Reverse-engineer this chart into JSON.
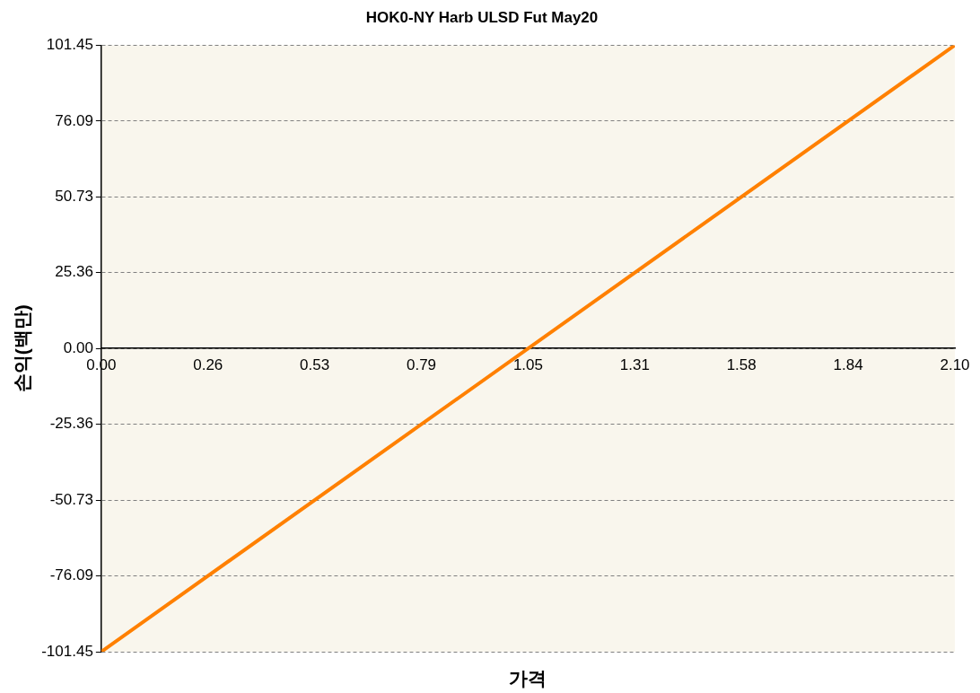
{
  "chart_data": {
    "type": "line",
    "title": "HOK0-NY Harb ULSD Fut May20",
    "xlabel": "가격",
    "ylabel": "손익(백만)",
    "x": [
      0,
      2.1
    ],
    "series": [
      {
        "color": "#ff8000",
        "values": [
          -101.45,
          101.45
        ]
      }
    ],
    "xlim": [
      0,
      2.1
    ],
    "xticks": [
      {
        "value": 0,
        "label": "0.00"
      },
      {
        "value": 0.2625,
        "label": "0.26"
      },
      {
        "value": 0.525,
        "label": "0.53"
      },
      {
        "value": 0.7875,
        "label": "0.79"
      },
      {
        "value": 1.05,
        "label": "1.05"
      },
      {
        "value": 1.3125,
        "label": "1.31"
      },
      {
        "value": 1.575,
        "label": "1.58"
      },
      {
        "value": 1.8375,
        "label": "1.84"
      },
      {
        "value": 2.1,
        "label": "2.10"
      }
    ],
    "ylim": [
      -101.45,
      101.45
    ],
    "yticks": [
      {
        "value": -101.45,
        "label": "-101.45"
      },
      {
        "value": -76.0875,
        "label": "-76.09"
      },
      {
        "value": -50.725,
        "label": "-50.73"
      },
      {
        "value": -25.3625,
        "label": "-25.36"
      },
      {
        "value": 0,
        "label": "0.00"
      },
      {
        "value": 25.3625,
        "label": "25.36"
      },
      {
        "value": 50.725,
        "label": "50.73"
      },
      {
        "value": 76.0875,
        "label": "76.09"
      },
      {
        "value": 101.45,
        "label": "101.45"
      }
    ],
    "grid": "y",
    "legend": false,
    "marker": "none",
    "line_style": "solid"
  }
}
